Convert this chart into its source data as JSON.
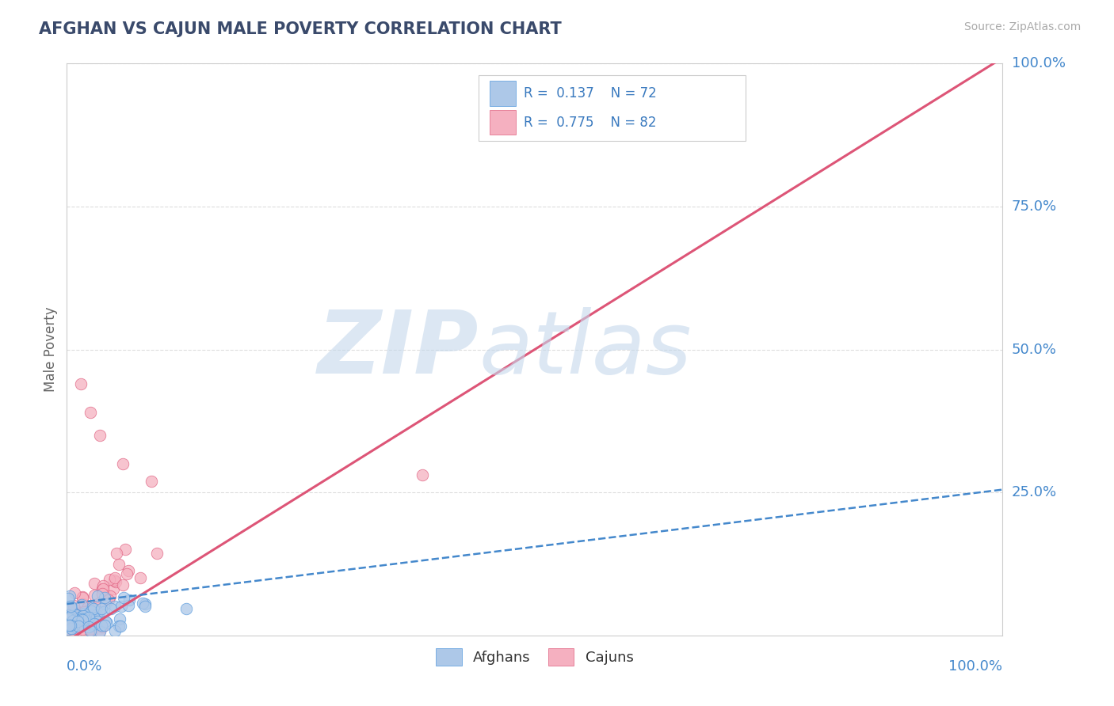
{
  "title": "AFGHAN VS CAJUN MALE POVERTY CORRELATION CHART",
  "source": "Source: ZipAtlas.com",
  "ylabel": "Male Poverty",
  "ytick_labels": [
    "25.0%",
    "50.0%",
    "75.0%",
    "100.0%"
  ],
  "ytick_values": [
    0.25,
    0.5,
    0.75,
    1.0
  ],
  "xlim": [
    0,
    1.0
  ],
  "ylim": [
    0,
    1.0
  ],
  "afghan_R": 0.137,
  "afghan_N": 72,
  "cajun_R": 0.775,
  "cajun_N": 82,
  "afghan_fill_color": "#adc8e8",
  "cajun_fill_color": "#f5b0c0",
  "afghan_edge_color": "#5599dd",
  "cajun_edge_color": "#e06080",
  "afghan_line_color": "#4488cc",
  "cajun_line_color": "#dd5577",
  "axis_label_color": "#4488cc",
  "watermark_main": "ZIP",
  "watermark_sub": "atlas",
  "watermark_color": "#c5d8ec",
  "title_color": "#3a4a6b",
  "source_color": "#aaaaaa",
  "legend_text_color": "#3a7abf",
  "legend_label_color": "#333333",
  "background_color": "#ffffff",
  "grid_color": "#dddddd",
  "cajun_trend_slope": 1.02,
  "cajun_trend_intercept": -0.01,
  "afghan_trend_slope": 0.2,
  "afghan_trend_intercept": 0.055
}
